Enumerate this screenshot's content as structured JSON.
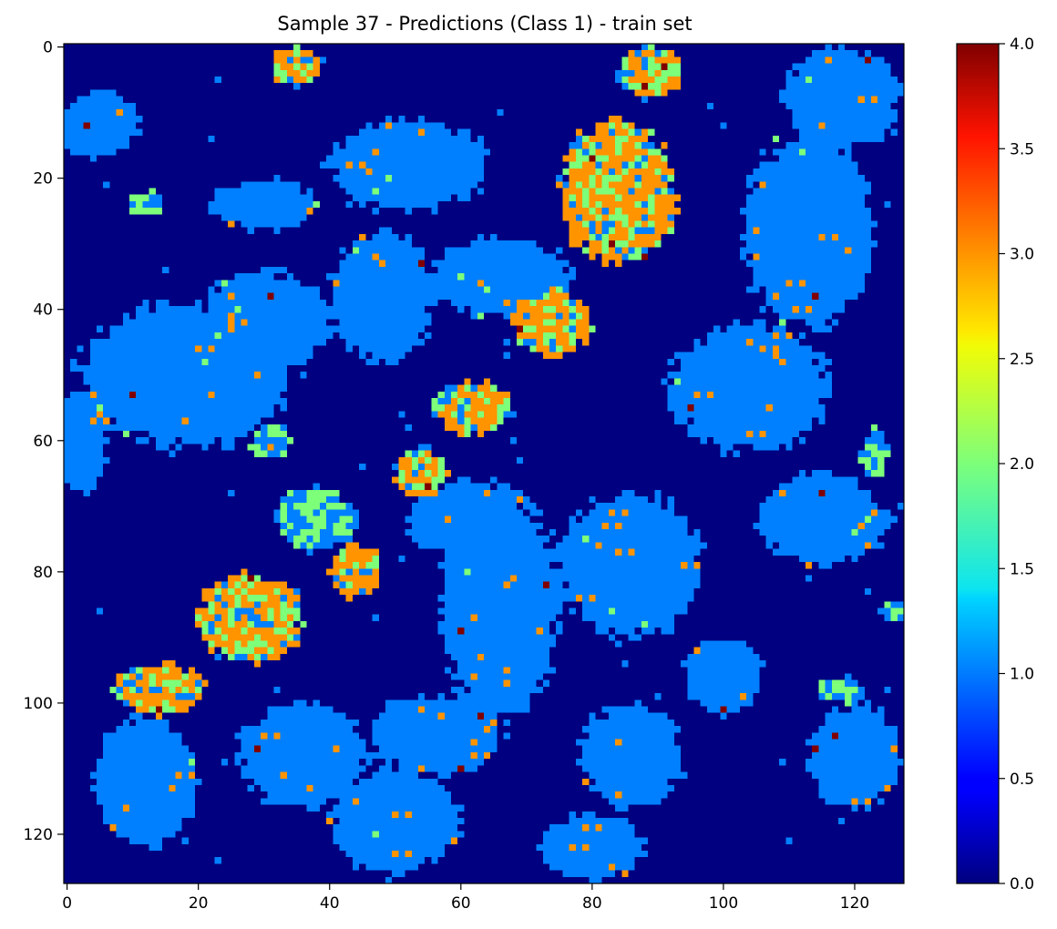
{
  "chart_data": {
    "type": "heatmap",
    "title": "Sample 37 - Predictions (Class 1) - train set",
    "xlabel": "",
    "ylabel": "",
    "grid_size": [
      128,
      128
    ],
    "xlim": [
      -0.5,
      127.5
    ],
    "ylim": [
      127.5,
      -0.5
    ],
    "x_ticks": [
      0,
      20,
      40,
      60,
      80,
      100,
      120
    ],
    "y_ticks": [
      0,
      20,
      40,
      60,
      80,
      100,
      120
    ],
    "colormap": "jet",
    "value_range": [
      0.0,
      4.0
    ],
    "colorbar_ticks": [
      "0.0",
      "0.5",
      "1.0",
      "1.5",
      "2.0",
      "2.5",
      "3.0",
      "3.5",
      "4.0"
    ],
    "class_colors": {
      "0": "#000080",
      "1": "#0080ff",
      "2": "#7dff7a",
      "3": "#ff9400",
      "4": "#800000"
    },
    "description_of_data": [],
    "blobs_class1": [
      {
        "x": 18,
        "y": 50,
        "rx": 16,
        "ry": 11
      },
      {
        "x": 30,
        "y": 42,
        "rx": 10,
        "ry": 8
      },
      {
        "x": 52,
        "y": 18,
        "rx": 12,
        "ry": 7
      },
      {
        "x": 48,
        "y": 38,
        "rx": 8,
        "ry": 10
      },
      {
        "x": 66,
        "y": 35,
        "rx": 11,
        "ry": 6
      },
      {
        "x": 30,
        "y": 24,
        "rx": 8,
        "ry": 4
      },
      {
        "x": 113,
        "y": 28,
        "rx": 10,
        "ry": 15
      },
      {
        "x": 118,
        "y": 8,
        "rx": 9,
        "ry": 8
      },
      {
        "x": 104,
        "y": 52,
        "rx": 12,
        "ry": 10
      },
      {
        "x": 115,
        "y": 72,
        "rx": 10,
        "ry": 7
      },
      {
        "x": 86,
        "y": 79,
        "rx": 11,
        "ry": 11
      },
      {
        "x": 66,
        "y": 85,
        "rx": 9,
        "ry": 18
      },
      {
        "x": 56,
        "y": 105,
        "rx": 10,
        "ry": 6
      },
      {
        "x": 86,
        "y": 108,
        "rx": 8,
        "ry": 8
      },
      {
        "x": 36,
        "y": 108,
        "rx": 10,
        "ry": 8
      },
      {
        "x": 50,
        "y": 118,
        "rx": 10,
        "ry": 8
      },
      {
        "x": 80,
        "y": 122,
        "rx": 8,
        "ry": 5
      },
      {
        "x": 12,
        "y": 112,
        "rx": 8,
        "ry": 10
      },
      {
        "x": 2,
        "y": 60,
        "rx": 4,
        "ry": 8
      },
      {
        "x": 5,
        "y": 12,
        "rx": 6,
        "ry": 5
      },
      {
        "x": 120,
        "y": 108,
        "rx": 7,
        "ry": 8
      },
      {
        "x": 100,
        "y": 96,
        "rx": 6,
        "ry": 6
      },
      {
        "x": 60,
        "y": 72,
        "rx": 8,
        "ry": 6
      }
    ],
    "blobs_class3": [
      {
        "x": 28,
        "y": 87,
        "rx": 8,
        "ry": 7
      },
      {
        "x": 14,
        "y": 98,
        "rx": 7,
        "ry": 4
      },
      {
        "x": 84,
        "y": 22,
        "rx": 9,
        "ry": 11
      },
      {
        "x": 74,
        "y": 42,
        "rx": 6,
        "ry": 5
      },
      {
        "x": 62,
        "y": 55,
        "rx": 6,
        "ry": 4
      },
      {
        "x": 54,
        "y": 65,
        "rx": 4,
        "ry": 4
      },
      {
        "x": 44,
        "y": 80,
        "rx": 4,
        "ry": 4
      },
      {
        "x": 35,
        "y": 3,
        "rx": 4,
        "ry": 3
      },
      {
        "x": 89,
        "y": 4,
        "rx": 5,
        "ry": 4
      }
    ],
    "blobs_class2": [
      {
        "x": 38,
        "y": 72,
        "rx": 6,
        "ry": 5
      },
      {
        "x": 31,
        "y": 60,
        "rx": 3,
        "ry": 3
      },
      {
        "x": 118,
        "y": 98,
        "rx": 4,
        "ry": 2
      },
      {
        "x": 126,
        "y": 86,
        "rx": 2,
        "ry": 2
      },
      {
        "x": 12,
        "y": 24,
        "rx": 3,
        "ry": 2
      },
      {
        "x": 123,
        "y": 62,
        "rx": 2,
        "ry": 4
      }
    ]
  }
}
